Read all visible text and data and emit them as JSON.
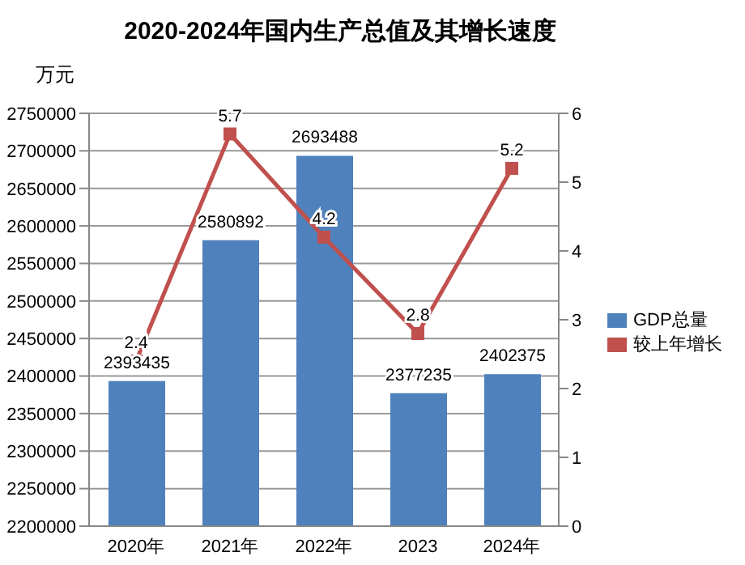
{
  "chart_data": {
    "type": "bar",
    "title": "2020-2024年国内生产总值及其增长速度",
    "ylabel": "万元",
    "categories": [
      "2020年",
      "2021年",
      "2022年",
      "2023",
      "2024年"
    ],
    "series": [
      {
        "name": "GDP总量",
        "color": "#4f81bd",
        "values": [
          2393435,
          2580892,
          2693488,
          2377235,
          2402375
        ]
      },
      {
        "name": "较上年增长",
        "type": "line",
        "axis": "y2",
        "color": "#c0504d",
        "values": [
          2.4,
          5.7,
          4.2,
          2.8,
          5.2
        ]
      }
    ],
    "ylim": [
      2200000,
      2750000
    ],
    "yticks": [
      2200000,
      2250000,
      2300000,
      2350000,
      2400000,
      2450000,
      2500000,
      2550000,
      2600000,
      2650000,
      2700000,
      2750000
    ],
    "y2lim": [
      0,
      6
    ],
    "y2ticks": [
      0,
      1,
      2,
      3,
      4,
      5,
      6
    ],
    "grid": "y",
    "legend": "right",
    "marker": "square",
    "data_labels": true
  }
}
